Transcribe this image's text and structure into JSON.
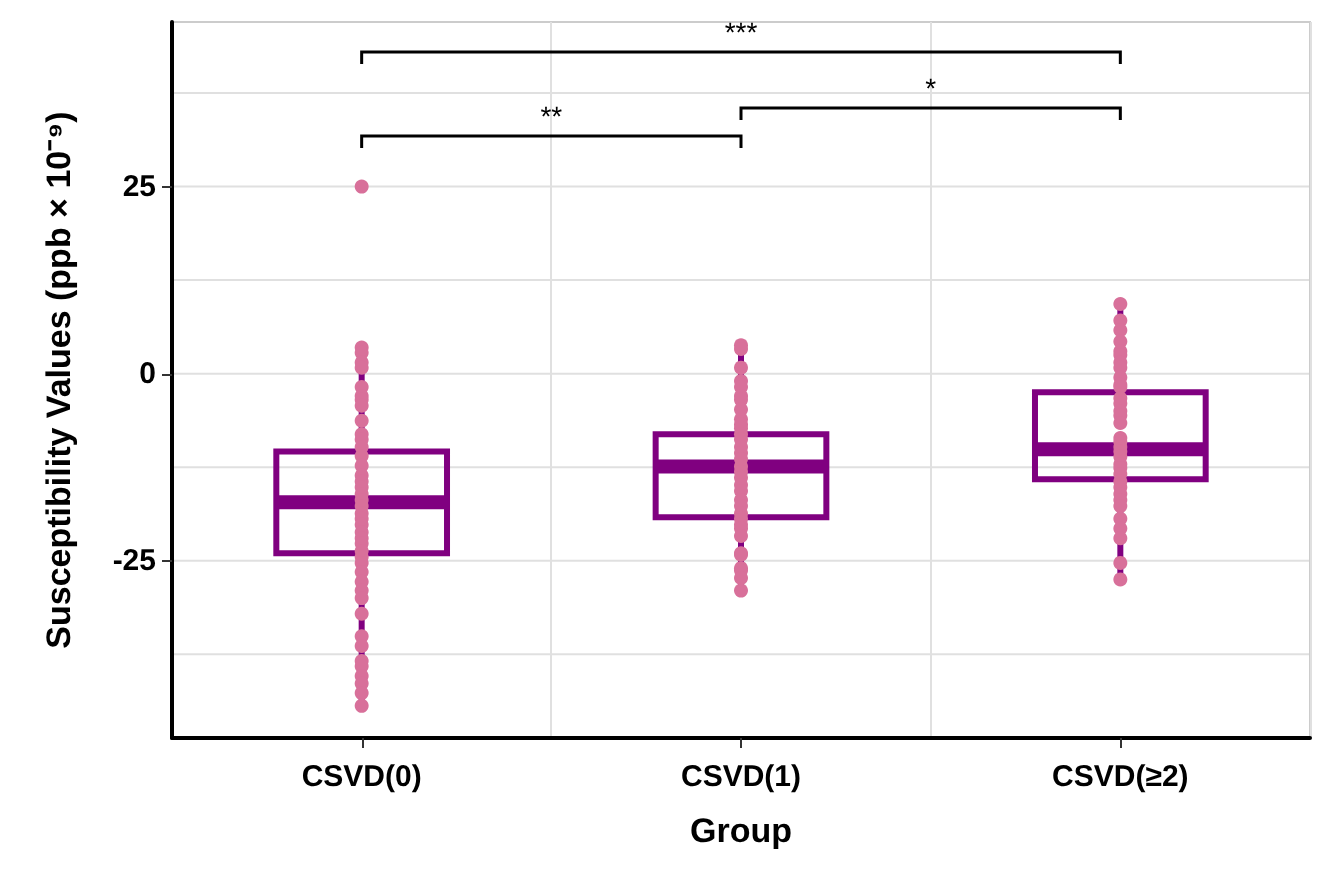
{
  "chart_data": {
    "type": "box",
    "xlabel": "Group",
    "ylabel": "Susceptibility Values (ppb × 10⁻⁹)",
    "categories": [
      "CSVD(0)",
      "CSVD(1)",
      "CSVD(≥2)"
    ],
    "ylim": [
      -48.7,
      47
    ],
    "yticks": [
      {
        "value": -37.5,
        "label": null
      },
      -25,
      {
        "value": -12.5,
        "label": null
      },
      0,
      {
        "value": 12.5,
        "label": null
      },
      25,
      {
        "value": 37.5,
        "label": null
      }
    ],
    "grid": true,
    "marker": "circle",
    "annotations": [
      "**",
      "*",
      "***"
    ],
    "series": [
      {
        "color": "#800080",
        "boxes": [
          {
            "low": -44.4,
            "q1": -24,
            "median": -17.2,
            "q3": -10.4,
            "high": 3
          },
          {
            "low": -29,
            "q1": -19.2,
            "median": -12.4,
            "q3": -8.1,
            "high": 3.5
          },
          {
            "low": -27.5,
            "q1": -14.1,
            "median": -10.1,
            "q3": -2.5,
            "high": 9.3
          }
        ]
      },
      {
        "type": "scatter",
        "color": "#d8709a",
        "x": [
          "CSVD(0)",
          "CSVD(0)",
          "CSVD(0)",
          "CSVD(0)",
          "CSVD(0)",
          "CSVD(0)",
          "CSVD(0)",
          "CSVD(0)",
          "CSVD(0)",
          "CSVD(0)",
          "CSVD(0)",
          "CSVD(0)",
          "CSVD(0)",
          "CSVD(0)",
          "CSVD(0)",
          "CSVD(0)",
          "CSVD(0)",
          "CSVD(0)",
          "CSVD(0)",
          "CSVD(0)",
          "CSVD(0)",
          "CSVD(0)",
          "CSVD(0)",
          "CSVD(0)",
          "CSVD(0)",
          "CSVD(0)",
          "CSVD(0)",
          "CSVD(0)",
          "CSVD(0)",
          "CSVD(0)",
          "CSVD(0)",
          "CSVD(0)",
          "CSVD(0)",
          "CSVD(0)",
          "CSVD(0)",
          "CSVD(0)",
          "CSVD(0)",
          "CSVD(0)",
          "CSVD(0)",
          "CSVD(0)",
          "CSVD(0)",
          "CSVD(0)",
          "CSVD(0)",
          "CSVD(1)",
          "CSVD(1)",
          "CSVD(1)",
          "CSVD(1)",
          "CSVD(1)",
          "CSVD(1)",
          "CSVD(1)",
          "CSVD(1)",
          "CSVD(1)",
          "CSVD(1)",
          "CSVD(1)",
          "CSVD(1)",
          "CSVD(1)",
          "CSVD(1)",
          "CSVD(1)",
          "CSVD(1)",
          "CSVD(1)",
          "CSVD(1)",
          "CSVD(1)",
          "CSVD(1)",
          "CSVD(1)",
          "CSVD(1)",
          "CSVD(1)",
          "CSVD(1)",
          "CSVD(1)",
          "CSVD(1)",
          "CSVD(1)",
          "CSVD(1)",
          "CSVD(1)",
          "CSVD(1)",
          "CSVD(1)",
          "CSVD(1)",
          "CSVD(1)",
          "CSVD(1)",
          "CSVD(≥2)",
          "CSVD(≥2)",
          "CSVD(≥2)",
          "CSVD(≥2)",
          "CSVD(≥2)",
          "CSVD(≥2)",
          "CSVD(≥2)",
          "CSVD(≥2)",
          "CSVD(≥2)",
          "CSVD(≥2)",
          "CSVD(≥2)",
          "CSVD(≥2)",
          "CSVD(≥2)",
          "CSVD(≥2)",
          "CSVD(≥2)",
          "CSVD(≥2)",
          "CSVD(≥2)",
          "CSVD(≥2)",
          "CSVD(≥2)",
          "CSVD(≥2)",
          "CSVD(≥2)",
          "CSVD(≥2)",
          "CSVD(≥2)",
          "CSVD(≥2)",
          "CSVD(≥2)",
          "CSVD(≥2)",
          "CSVD(≥2)",
          "CSVD(≥2)",
          "CSVD(≥2)",
          "CSVD(≥2)",
          "CSVD(≥2)",
          "CSVD(≥2)",
          "CSVD(≥2)",
          "CSVD(≥2)"
        ],
        "values": [
          25,
          3.5,
          2.8,
          1.5,
          0.8,
          -1.8,
          -3,
          -3.5,
          -4.3,
          -6.3,
          -8.1,
          -8.8,
          -9.8,
          -11,
          -12.3,
          -13.6,
          -14.4,
          -15.2,
          -16.1,
          -16.9,
          -17.7,
          -18.7,
          -19.4,
          -20.2,
          -21.2,
          -22,
          -22.7,
          -23.7,
          -24.5,
          -25.3,
          -26.5,
          -27.8,
          -29,
          -30,
          -32.1,
          -35.1,
          -36.4,
          -38.4,
          -39.1,
          -40.4,
          -41.4,
          -42.7,
          -44.4,
          3.8,
          3.3,
          0.8,
          -1,
          -1.8,
          -3,
          -3.5,
          -4.8,
          -6.1,
          -6.8,
          -7.3,
          -8.1,
          -8.8,
          -9.8,
          -10.6,
          -11.4,
          -12.4,
          -13.1,
          -13.9,
          -14.9,
          -15.7,
          -16.9,
          -17.7,
          -18.7,
          -19.4,
          -20.2,
          -20.7,
          -21.7,
          -24,
          -24.2,
          -26,
          -26.3,
          -27.3,
          -29,
          9.3,
          7.1,
          5.8,
          4.3,
          3,
          2.5,
          1.5,
          0.8,
          -0.5,
          -1.5,
          -1.8,
          -3.3,
          -4,
          -5,
          -5.6,
          -6.6,
          -8.6,
          -9.1,
          -9.8,
          -10.4,
          -11.1,
          -12.1,
          -12.6,
          -13.4,
          -14.4,
          -15.2,
          -16.1,
          -16.9,
          -17.7,
          -19.4,
          -20.7,
          -22,
          -25.3,
          -27.5
        ]
      }
    ]
  }
}
